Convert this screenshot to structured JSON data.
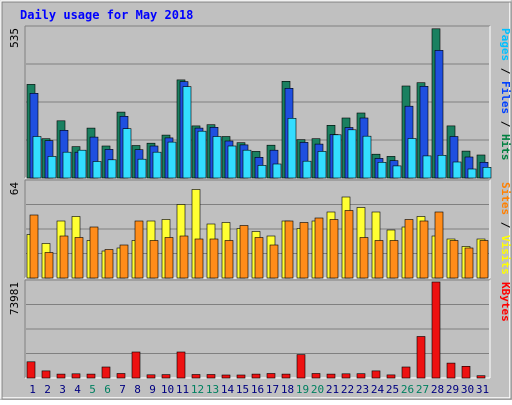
{
  "chart_data": {
    "type": "bar",
    "title": "Daily usage for May 2018",
    "categories": [
      "1",
      "2",
      "3",
      "4",
      "5",
      "6",
      "7",
      "8",
      "9",
      "10",
      "11",
      "12",
      "13",
      "14",
      "15",
      "16",
      "17",
      "18",
      "19",
      "20",
      "21",
      "22",
      "23",
      "24",
      "25",
      "26",
      "27",
      "28",
      "29",
      "30",
      "31"
    ],
    "weekend_days": [
      "5",
      "6",
      "12",
      "13",
      "19",
      "20",
      "26",
      "27"
    ],
    "panels": [
      {
        "id": "top",
        "ymax": 535,
        "ymax_label": "535",
        "right_label_parts": [
          {
            "text": "Pages",
            "color": "#00c0ff"
          },
          {
            "text": " / ",
            "color": "#000000"
          },
          {
            "text": "Files",
            "color": "#0040ff"
          },
          {
            "text": " / ",
            "color": "#000000"
          },
          {
            "text": "Hits",
            "color": "#008040"
          }
        ],
        "series": [
          {
            "name": "Hits",
            "color": "#1a8060",
            "values": [
              334,
              140,
              204,
              112,
              178,
              114,
              235,
              116,
              124,
              153,
              350,
              186,
              190,
              148,
              126,
              95,
              117,
              345,
              137,
              140,
              188,
              214,
              232,
              85,
              77,
              328,
              340,
              532,
              186,
              96,
              82
            ]
          },
          {
            "name": "Files",
            "color": "#1f4fe0",
            "values": [
              302,
              133,
              170,
              92,
              146,
              102,
              220,
              101,
              114,
              143,
              344,
              178,
              181,
              132,
              118,
              74,
              99,
              320,
              127,
              121,
              155,
              180,
              214,
              70,
              62,
              256,
              327,
              455,
              148,
              75,
              56
            ]
          },
          {
            "name": "Pages",
            "color": "#33ddff",
            "values": [
              148,
              77,
              92,
              99,
              59,
              65,
              176,
              67,
              92,
              128,
              326,
              167,
              148,
              114,
              99,
              45,
              50,
              213,
              60,
              95,
              154,
              172,
              149,
              56,
              43,
              141,
              79,
              81,
              57,
              32,
              38
            ]
          }
        ]
      },
      {
        "id": "middle",
        "ymax": 64,
        "ymax_label": "64",
        "right_label_parts": [
          {
            "text": "Sites",
            "color": "#ff8000"
          },
          {
            "text": " / ",
            "color": "#000000"
          },
          {
            "text": "Visits",
            "color": "#ffff00"
          }
        ],
        "series": [
          {
            "name": "Visits",
            "color": "#ffff33",
            "values": [
              29,
              23,
              38,
              41,
              25,
              18,
              20,
              25,
              38,
              39,
              49,
              59,
              36,
              37,
              33,
              31,
              28,
              38,
              33,
              38,
              44,
              54,
              47,
              44,
              32,
              34,
              41,
              28,
              26,
              21,
              26
            ]
          },
          {
            "name": "Sites",
            "color": "#ff8c1a",
            "values": [
              42,
              17,
              28,
              27,
              34,
              19,
              22,
              38,
              25,
              27,
              28,
              26,
              26,
              25,
              35,
              27,
              22,
              38,
              37,
              40,
              39,
              45,
              27,
              25,
              25,
              39,
              38,
              44,
              25,
              20,
              25
            ]
          }
        ]
      },
      {
        "id": "bottom",
        "ymax": 73981,
        "ymax_label": "73981",
        "right_label_parts": [
          {
            "text": "KBytes",
            "color": "#ff0000"
          }
        ],
        "series": [
          {
            "name": "KBytes",
            "color": "#ee1111",
            "values": [
              12500,
              5500,
              3000,
              3200,
              3000,
              8500,
              3500,
              20000,
              2500,
              2600,
              20000,
              2700,
              2700,
              2300,
              2300,
              3000,
              3500,
              3000,
              18000,
              3500,
              3000,
              3200,
              3300,
              5500,
              2400,
              8500,
              32000,
              73981,
              11500,
              9000,
              1800
            ]
          }
        ]
      }
    ],
    "colors": {
      "outer_background": "#c0c0c0",
      "plot_background": "#c0c0c0",
      "title_color": "#0000ff",
      "day_label_color": "#000080",
      "weekend_label_color": "#008060",
      "gridline_color": "#808080"
    }
  }
}
